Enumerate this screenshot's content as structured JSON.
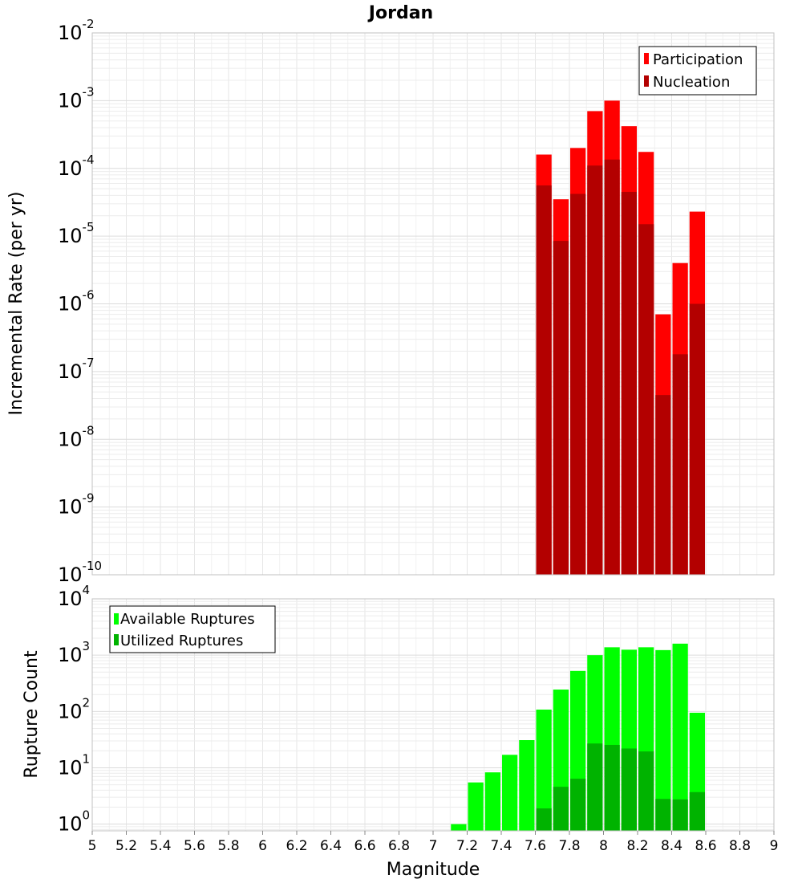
{
  "chart_data": [
    {
      "type": "bar",
      "title": "Jordan",
      "ylabel": "Incremental Rate (per yr)",
      "xlabel": "",
      "yscale": "log",
      "ylim": [
        1e-10,
        0.01
      ],
      "xlim": [
        5,
        9
      ],
      "grid": true,
      "legend_position": "top-right",
      "x": [
        7.65,
        7.75,
        7.85,
        7.95,
        8.05,
        8.15,
        8.25,
        8.35,
        8.45,
        8.55
      ],
      "series": [
        {
          "name": "Participation",
          "color": "#ff0000",
          "values": [
            0.00016,
            3.5e-05,
            0.0002,
            0.0007,
            0.001,
            0.00042,
            0.000175,
            7e-07,
            4e-06,
            2.3e-05
          ]
        },
        {
          "name": "Nucleation",
          "color": "#b30000",
          "values": [
            5.6e-05,
            8.5e-06,
            4.2e-05,
            0.00011,
            0.000135,
            4.5e-05,
            1.5e-05,
            4.5e-08,
            1.8e-07,
            1e-06
          ]
        }
      ],
      "yticks": [
        {
          "base": "10",
          "exp": "-2"
        },
        {
          "base": "10",
          "exp": "-3"
        },
        {
          "base": "10",
          "exp": "-4"
        },
        {
          "base": "10",
          "exp": "-5"
        },
        {
          "base": "10",
          "exp": "-6"
        },
        {
          "base": "10",
          "exp": "-7"
        },
        {
          "base": "10",
          "exp": "-8"
        },
        {
          "base": "10",
          "exp": "-9"
        },
        {
          "base": "10",
          "exp": "-10"
        }
      ]
    },
    {
      "type": "bar",
      "title": "",
      "ylabel": "Rupture Count",
      "xlabel": "Magnitude",
      "yscale": "log",
      "ylim": [
        0.76,
        10000
      ],
      "xlim": [
        5,
        9
      ],
      "grid": true,
      "legend_position": "top-left",
      "x": [
        7.15,
        7.25,
        7.35,
        7.45,
        7.55,
        7.65,
        7.75,
        7.85,
        7.95,
        8.05,
        8.15,
        8.25,
        8.35,
        8.45,
        8.55
      ],
      "series": [
        {
          "name": "Available Ruptures",
          "color": "#00ff00",
          "values": [
            1,
            5.5,
            8.3,
            17,
            31,
            108,
            245,
            525,
            1000,
            1380,
            1250,
            1380,
            1230,
            1600,
            95
          ]
        },
        {
          "name": "Utilized Ruptures",
          "color": "#00b300",
          "values": [
            null,
            null,
            null,
            null,
            null,
            1.9,
            4.6,
            6.4,
            27,
            25.5,
            22,
            19.5,
            2.8,
            2.75,
            3.7
          ]
        }
      ],
      "yticks": [
        {
          "base": "10",
          "exp": "4"
        },
        {
          "base": "10",
          "exp": "3"
        },
        {
          "base": "10",
          "exp": "2"
        },
        {
          "base": "10",
          "exp": "1"
        },
        {
          "base": "10",
          "exp": "0"
        }
      ],
      "xtick_labels": [
        "5",
        "5.2",
        "5.4",
        "5.6",
        "5.8",
        "6",
        "6.2",
        "6.4",
        "6.6",
        "6.8",
        "7",
        "7.2",
        "7.4",
        "7.6",
        "7.8",
        "8",
        "8.2",
        "8.4",
        "8.6",
        "8.8",
        "9"
      ]
    }
  ]
}
